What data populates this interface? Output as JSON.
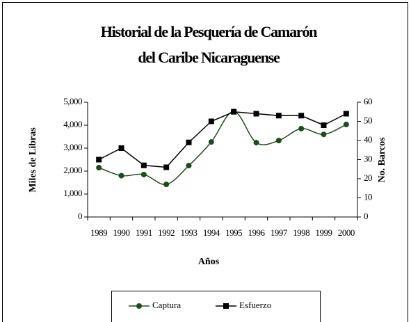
{
  "chart_data": {
    "type": "line",
    "title": [
      "Historial de la Pesquería de Camarón",
      "del Caribe Nicaraguense"
    ],
    "x_label": "Años",
    "y_label": "Miles de Libras",
    "y2_label": "No. Barcos",
    "categories": [
      "1989",
      "1990",
      "1991",
      "1992",
      "1993",
      "1994",
      "1995",
      "1996",
      "1997",
      "1998",
      "1999",
      "2000"
    ],
    "series": [
      {
        "name": "Captura",
        "color": "#1f4a1f",
        "marker": "circle",
        "smooth": true,
        "values": [
          2150,
          1800,
          1850,
          1420,
          2240,
          3270,
          4600,
          3240,
          3330,
          3850,
          3600,
          4030
        ]
      },
      {
        "name": "Esfuerzo",
        "color": "#000000",
        "marker": "square",
        "axis": "y2",
        "values": [
          30,
          36,
          27,
          26,
          39,
          50,
          55,
          54,
          53,
          53,
          48,
          54
        ]
      }
    ],
    "ylim": [
      0,
      5000
    ],
    "yticks": [
      0,
      {
        "value": 1000,
        "label": "1,000"
      },
      {
        "value": 2000,
        "label": "2,000"
      },
      {
        "value": 3000,
        "label": "3,000"
      },
      {
        "value": 4000,
        "label": "4,000"
      },
      {
        "value": 5000,
        "label": "5,000"
      }
    ],
    "y2lim": [
      0,
      60
    ],
    "y2ticks": [
      0,
      10,
      20,
      30,
      40,
      50,
      60
    ],
    "grid": false,
    "legend": "bottom"
  }
}
